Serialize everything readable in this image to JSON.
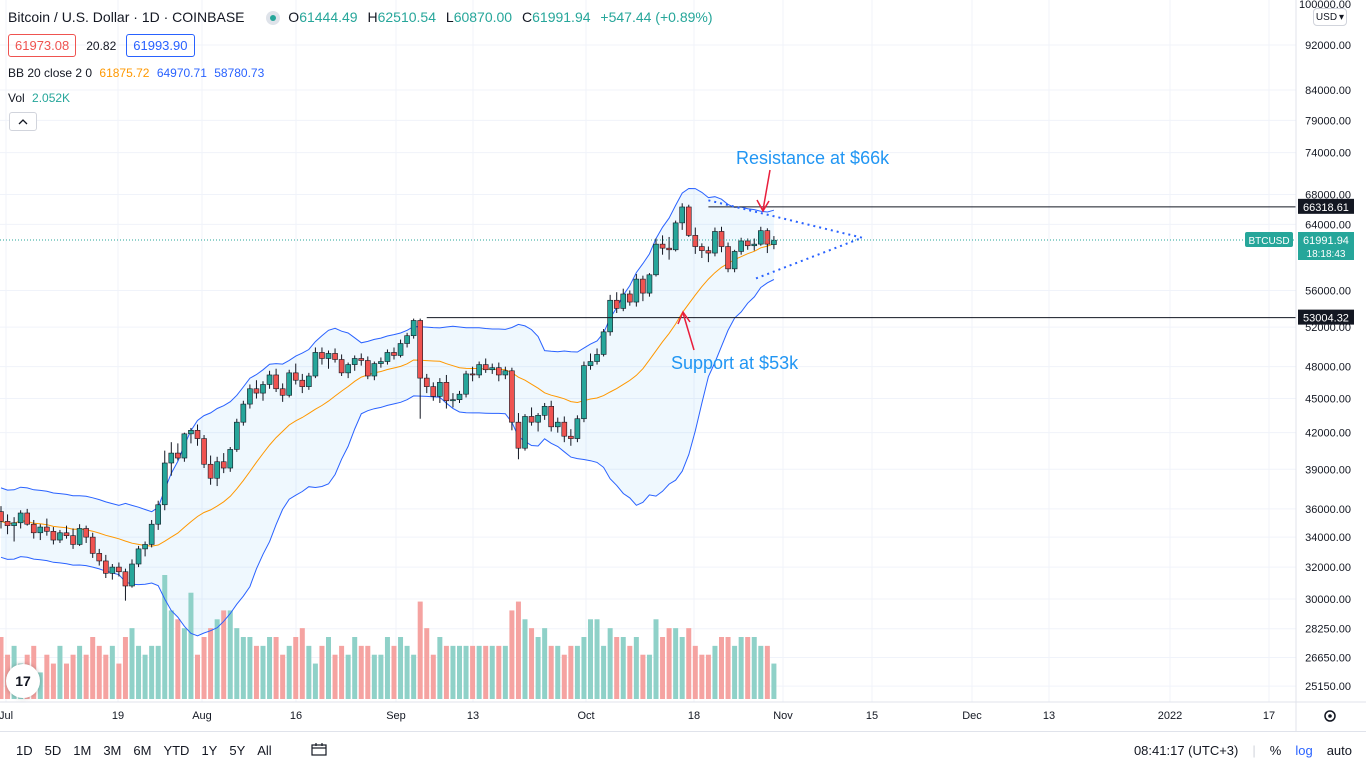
{
  "header": {
    "symbol_title": "Bitcoin / U.S. Dollar · 1D · COINBASE",
    "ohlc": [
      {
        "label": "O",
        "value": "61444.49"
      },
      {
        "label": "H",
        "value": "62510.54"
      },
      {
        "label": "L",
        "value": "60870.00"
      },
      {
        "label": "C",
        "value": "61991.94"
      },
      {
        "label": "",
        "value": "+547.44 (+0.89%)"
      }
    ],
    "sell_price": "61973.08",
    "spread": "20.82",
    "buy_price": "61993.90",
    "bb_label": "BB 20 close 2 0",
    "bb_values": [
      "61875.72",
      "64970.71",
      "58780.73"
    ],
    "vol_label": "Vol",
    "vol_value": "2.052K",
    "collapse_glyph": "^"
  },
  "price_scale": {
    "top_label": "100000.00",
    "currency": "USD",
    "ticks": [
      "92000.00",
      "84000.00",
      "79000.00",
      "74000.00",
      "68000.00",
      "64000.00",
      "56000.00",
      "52000.00",
      "48000.00",
      "45000.00",
      "42000.00",
      "39000.00",
      "36000.00",
      "34000.00",
      "32000.00",
      "30000.00",
      "28250.00",
      "26650.00",
      "25150.00"
    ],
    "resistance_label": "66318.61",
    "support_label": "53004.32",
    "symbol_tag": "BTCUSD",
    "last_price": "61991.94",
    "countdown": "18:18:43"
  },
  "time_axis": {
    "labels": [
      "Jul",
      "19",
      "Aug",
      "16",
      "Sep",
      "13",
      "Oct",
      "18",
      "Nov",
      "15",
      "Dec",
      "13",
      "2022",
      "17"
    ]
  },
  "annotations": {
    "resistance": "Resistance at $66k",
    "support": "Support at $53k"
  },
  "bottom_bar": {
    "ranges": [
      "1D",
      "5D",
      "1M",
      "3M",
      "6M",
      "YTD",
      "1Y",
      "5Y",
      "All"
    ],
    "clock": "08:41:17 (UTC+3)",
    "percent": "%",
    "log": "log",
    "auto": "auto"
  },
  "logo_text": "17",
  "colors": {
    "up": "#26a69a",
    "down": "#ef5350",
    "bb_band": "#2962ff",
    "bb_basis": "#ff9800",
    "annotation": "#2196f3",
    "arrow": "#e91e3c",
    "vol_up": "#8fd1c8",
    "vol_down": "#f5a3a1"
  },
  "chart_data": {
    "type": "candlestick",
    "title": "Bitcoin / U.S. Dollar · 1D · COINBASE",
    "y_scale": "log",
    "ylim": [
      24000,
      100000
    ],
    "resistance": 66318.61,
    "support": 53004.32,
    "series": [
      {
        "name": "candles",
        "values": [
          [
            35800,
            36200,
            34600,
            35100
          ],
          [
            35100,
            35600,
            34200,
            34800
          ],
          [
            34800,
            35400,
            33700,
            35000
          ],
          [
            35000,
            35900,
            34600,
            35700
          ],
          [
            35700,
            36000,
            34800,
            34900
          ],
          [
            34900,
            35200,
            33900,
            34300
          ],
          [
            34300,
            34900,
            33800,
            34700
          ],
          [
            34700,
            35300,
            34100,
            34400
          ],
          [
            34400,
            34700,
            33500,
            33800
          ],
          [
            33800,
            34500,
            33600,
            34300
          ],
          [
            34300,
            34800,
            33900,
            34100
          ],
          [
            34100,
            34600,
            33200,
            33500
          ],
          [
            33500,
            34900,
            33400,
            34600
          ],
          [
            34600,
            34800,
            33600,
            34000
          ],
          [
            34000,
            34300,
            32600,
            32900
          ],
          [
            32900,
            33200,
            32100,
            32400
          ],
          [
            32400,
            32800,
            31300,
            31600
          ],
          [
            31600,
            32200,
            31200,
            32000
          ],
          [
            32000,
            32300,
            31400,
            31700
          ],
          [
            31700,
            31900,
            29900,
            30800
          ],
          [
            30800,
            32500,
            30700,
            32200
          ],
          [
            32200,
            33400,
            32000,
            33200
          ],
          [
            33200,
            33700,
            32700,
            33500
          ],
          [
            33500,
            35200,
            33300,
            34900
          ],
          [
            34900,
            36600,
            34500,
            36300
          ],
          [
            36300,
            40500,
            35900,
            39500
          ],
          [
            39500,
            41200,
            38500,
            40300
          ],
          [
            40300,
            41100,
            39700,
            39900
          ],
          [
            39900,
            42000,
            39600,
            41900
          ],
          [
            41900,
            42400,
            41100,
            42200
          ],
          [
            42200,
            42700,
            40900,
            41500
          ],
          [
            41500,
            41800,
            39100,
            39400
          ],
          [
            39400,
            40100,
            37800,
            38300
          ],
          [
            38300,
            40000,
            37700,
            39600
          ],
          [
            39600,
            40300,
            38700,
            39100
          ],
          [
            39100,
            40800,
            38800,
            40600
          ],
          [
            40600,
            43200,
            40400,
            42900
          ],
          [
            42900,
            44800,
            42600,
            44500
          ],
          [
            44500,
            46300,
            44100,
            45900
          ],
          [
            45900,
            46700,
            45000,
            45500
          ],
          [
            45500,
            46600,
            44800,
            46300
          ],
          [
            46300,
            47600,
            45900,
            47200
          ],
          [
            47200,
            47800,
            45600,
            45900
          ],
          [
            45900,
            46400,
            44700,
            45300
          ],
          [
            45300,
            47700,
            45100,
            47400
          ],
          [
            47400,
            48300,
            46300,
            46700
          ],
          [
            46700,
            47300,
            45500,
            46100
          ],
          [
            46100,
            47400,
            45800,
            47100
          ],
          [
            47100,
            49900,
            46900,
            49400
          ],
          [
            49400,
            49900,
            48200,
            48800
          ],
          [
            48800,
            49600,
            47800,
            49300
          ],
          [
            49300,
            49800,
            48400,
            48700
          ],
          [
            48700,
            49200,
            47100,
            47400
          ],
          [
            47400,
            48400,
            46900,
            48200
          ],
          [
            48200,
            49100,
            47600,
            48800
          ],
          [
            48800,
            49300,
            48100,
            48600
          ],
          [
            48600,
            49000,
            46800,
            47100
          ],
          [
            47100,
            48500,
            46700,
            48300
          ],
          [
            48300,
            48900,
            47900,
            48500
          ],
          [
            48500,
            49700,
            48200,
            49400
          ],
          [
            49400,
            49900,
            48700,
            49100
          ],
          [
            49100,
            50700,
            48900,
            50300
          ],
          [
            50300,
            51400,
            49900,
            51100
          ],
          [
            51100,
            52900,
            50800,
            52700
          ],
          [
            52700,
            52900,
            43200,
            46900
          ],
          [
            46900,
            47300,
            45500,
            46100
          ],
          [
            46100,
            46500,
            44800,
            45200
          ],
          [
            45200,
            46900,
            44600,
            46500
          ],
          [
            46500,
            47200,
            44100,
            44800
          ],
          [
            44800,
            45500,
            44200,
            44900
          ],
          [
            44900,
            45700,
            44600,
            45400
          ],
          [
            45400,
            47600,
            45100,
            47300
          ],
          [
            47300,
            48000,
            46600,
            47200
          ],
          [
            47200,
            48500,
            46900,
            48200
          ],
          [
            48200,
            48800,
            47400,
            47700
          ],
          [
            47700,
            48300,
            47300,
            47900
          ],
          [
            47900,
            48400,
            46600,
            47200
          ],
          [
            47200,
            48000,
            46800,
            47600
          ],
          [
            47600,
            47900,
            42200,
            42900
          ],
          [
            42900,
            43700,
            39800,
            40700
          ],
          [
            40700,
            43600,
            40500,
            43400
          ],
          [
            43400,
            44200,
            42600,
            42900
          ],
          [
            42900,
            43700,
            42100,
            43500
          ],
          [
            43500,
            44600,
            43100,
            44300
          ],
          [
            44300,
            44800,
            42100,
            42500
          ],
          [
            42500,
            43300,
            42000,
            42900
          ],
          [
            42900,
            43400,
            41200,
            41700
          ],
          [
            41700,
            42300,
            40900,
            41500
          ],
          [
            41500,
            43500,
            41200,
            43200
          ],
          [
            43200,
            48500,
            42900,
            48100
          ],
          [
            48100,
            49300,
            47700,
            48500
          ],
          [
            48500,
            49800,
            48200,
            49200
          ],
          [
            49200,
            51800,
            49000,
            51500
          ],
          [
            51500,
            55500,
            51100,
            54900
          ],
          [
            54900,
            55800,
            53500,
            54000
          ],
          [
            54000,
            56200,
            53700,
            55600
          ],
          [
            55600,
            56000,
            54300,
            54700
          ],
          [
            54700,
            57900,
            54200,
            57300
          ],
          [
            57300,
            57700,
            54800,
            55700
          ],
          [
            55700,
            58000,
            55300,
            57800
          ],
          [
            57800,
            62200,
            57600,
            61500
          ],
          [
            61500,
            62600,
            60200,
            61000
          ],
          [
            61000,
            62400,
            59600,
            60800
          ],
          [
            60800,
            64500,
            60600,
            64200
          ],
          [
            64200,
            66800,
            63300,
            66300
          ],
          [
            66300,
            66600,
            62400,
            62600
          ],
          [
            62600,
            63600,
            60300,
            61200
          ],
          [
            61200,
            61600,
            59800,
            60700
          ],
          [
            60700,
            61200,
            59300,
            60400
          ],
          [
            60400,
            63600,
            60000,
            63100
          ],
          [
            63100,
            63700,
            60500,
            61200
          ],
          [
            61200,
            61700,
            58100,
            58500
          ],
          [
            58500,
            60800,
            58100,
            60600
          ],
          [
            60600,
            62300,
            60200,
            61900
          ],
          [
            61900,
            62200,
            60800,
            61300
          ],
          [
            61300,
            62200,
            60700,
            61500
          ],
          [
            61500,
            63700,
            61300,
            63200
          ],
          [
            63200,
            63500,
            60400,
            61500
          ],
          [
            61444,
            62511,
            60870,
            61992
          ]
        ]
      },
      {
        "name": "volume",
        "values": [
          28,
          26,
          27,
          25,
          26,
          27,
          24,
          26,
          25,
          27,
          25,
          26,
          27,
          26,
          28,
          27,
          26,
          27,
          25,
          28,
          29,
          27,
          26,
          27,
          27,
          35,
          31,
          30,
          29,
          33,
          26,
          28,
          29,
          30,
          31,
          31,
          29,
          28,
          28,
          27,
          27,
          28,
          28,
          26,
          27,
          28,
          29,
          27,
          25,
          27,
          28,
          26,
          27,
          26,
          28,
          27,
          27,
          26,
          26,
          28,
          27,
          28,
          27,
          26,
          32,
          29,
          26,
          28,
          27,
          27,
          27,
          27,
          27,
          27,
          27,
          27,
          27,
          27,
          31,
          32,
          30,
          29,
          28,
          29,
          27,
          27,
          26,
          27,
          27,
          28,
          30,
          30,
          27,
          29,
          28,
          28,
          27,
          28,
          26,
          26,
          30,
          28,
          29,
          29,
          28,
          29,
          27,
          26,
          26,
          27,
          28,
          28,
          27,
          28,
          28,
          28,
          27,
          27,
          25
        ]
      }
    ],
    "bb_basis": [],
    "x_labels": [
      "Jul",
      "19",
      "Aug",
      "16",
      "Sep",
      "13",
      "Oct",
      "18",
      "Nov",
      "15",
      "Dec",
      "13",
      "2022",
      "17"
    ]
  }
}
